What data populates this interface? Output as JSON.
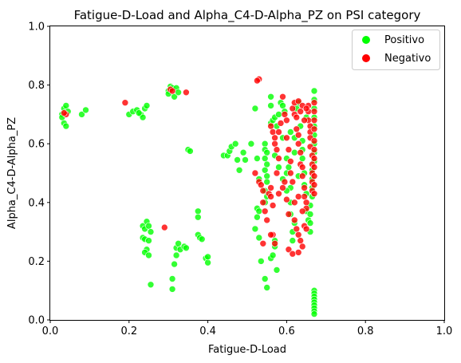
{
  "chart_data": {
    "type": "scatter",
    "title": "Fatigue-D-Load and Alpha_C4-D-Alpha_PZ on PSI category",
    "xlabel": "Fatigue-D-Load",
    "ylabel": "Alpha_C4-D-Alpha_PZ",
    "xlim": [
      0.0,
      1.0
    ],
    "ylim": [
      0.0,
      1.0
    ],
    "xticks": [
      "0.0",
      "0.2",
      "0.4",
      "0.6",
      "0.8",
      "1.0"
    ],
    "yticks": [
      "0.0",
      "0.2",
      "0.4",
      "0.6",
      "0.8",
      "1.0"
    ],
    "grid": false,
    "legend_position": "top-right",
    "series": [
      {
        "name": "Positivo",
        "color": "#00ff00",
        "points": [
          [
            0.03,
            0.7
          ],
          [
            0.035,
            0.72
          ],
          [
            0.04,
            0.73
          ],
          [
            0.035,
            0.67
          ],
          [
            0.04,
            0.66
          ],
          [
            0.045,
            0.71
          ],
          [
            0.03,
            0.69
          ],
          [
            0.08,
            0.7
          ],
          [
            0.09,
            0.715
          ],
          [
            0.2,
            0.7
          ],
          [
            0.21,
            0.71
          ],
          [
            0.22,
            0.715
          ],
          [
            0.23,
            0.7
          ],
          [
            0.235,
            0.69
          ],
          [
            0.24,
            0.72
          ],
          [
            0.245,
            0.73
          ],
          [
            0.225,
            0.705
          ],
          [
            0.3,
            0.78
          ],
          [
            0.305,
            0.795
          ],
          [
            0.31,
            0.79
          ],
          [
            0.315,
            0.76
          ],
          [
            0.32,
            0.79
          ],
          [
            0.325,
            0.775
          ],
          [
            0.3,
            0.77
          ],
          [
            0.35,
            0.58
          ],
          [
            0.355,
            0.575
          ],
          [
            0.235,
            0.32
          ],
          [
            0.24,
            0.31
          ],
          [
            0.245,
            0.335
          ],
          [
            0.25,
            0.32
          ],
          [
            0.235,
            0.28
          ],
          [
            0.24,
            0.275
          ],
          [
            0.25,
            0.27
          ],
          [
            0.245,
            0.24
          ],
          [
            0.24,
            0.23
          ],
          [
            0.25,
            0.22
          ],
          [
            0.255,
            0.3
          ],
          [
            0.255,
            0.12
          ],
          [
            0.31,
            0.14
          ],
          [
            0.315,
            0.19
          ],
          [
            0.32,
            0.22
          ],
          [
            0.32,
            0.245
          ],
          [
            0.325,
            0.26
          ],
          [
            0.33,
            0.24
          ],
          [
            0.34,
            0.25
          ],
          [
            0.345,
            0.245
          ],
          [
            0.31,
            0.105
          ],
          [
            0.375,
            0.37
          ],
          [
            0.375,
            0.35
          ],
          [
            0.375,
            0.29
          ],
          [
            0.38,
            0.28
          ],
          [
            0.385,
            0.275
          ],
          [
            0.395,
            0.21
          ],
          [
            0.4,
            0.195
          ],
          [
            0.4,
            0.215
          ],
          [
            0.44,
            0.56
          ],
          [
            0.45,
            0.56
          ],
          [
            0.455,
            0.575
          ],
          [
            0.46,
            0.59
          ],
          [
            0.47,
            0.6
          ],
          [
            0.48,
            0.51
          ],
          [
            0.475,
            0.545
          ],
          [
            0.49,
            0.57
          ],
          [
            0.495,
            0.545
          ],
          [
            0.51,
            0.6
          ],
          [
            0.52,
            0.72
          ],
          [
            0.525,
            0.55
          ],
          [
            0.53,
            0.48
          ],
          [
            0.525,
            0.38
          ],
          [
            0.53,
            0.37
          ],
          [
            0.525,
            0.35
          ],
          [
            0.52,
            0.31
          ],
          [
            0.53,
            0.28
          ],
          [
            0.535,
            0.2
          ],
          [
            0.545,
            0.6
          ],
          [
            0.545,
            0.58
          ],
          [
            0.55,
            0.57
          ],
          [
            0.545,
            0.55
          ],
          [
            0.55,
            0.53
          ],
          [
            0.545,
            0.51
          ],
          [
            0.55,
            0.49
          ],
          [
            0.55,
            0.47
          ],
          [
            0.545,
            0.44
          ],
          [
            0.55,
            0.42
          ],
          [
            0.545,
            0.4
          ],
          [
            0.545,
            0.14
          ],
          [
            0.55,
            0.11
          ],
          [
            0.56,
            0.21
          ],
          [
            0.565,
            0.22
          ],
          [
            0.57,
            0.25
          ],
          [
            0.57,
            0.27
          ],
          [
            0.575,
            0.17
          ],
          [
            0.56,
            0.76
          ],
          [
            0.56,
            0.73
          ],
          [
            0.56,
            0.67
          ],
          [
            0.565,
            0.68
          ],
          [
            0.57,
            0.69
          ],
          [
            0.575,
            0.66
          ],
          [
            0.58,
            0.7
          ],
          [
            0.585,
            0.74
          ],
          [
            0.59,
            0.73
          ],
          [
            0.595,
            0.71
          ],
          [
            0.6,
            0.55
          ],
          [
            0.6,
            0.5
          ],
          [
            0.605,
            0.52
          ],
          [
            0.61,
            0.45
          ],
          [
            0.61,
            0.4
          ],
          [
            0.61,
            0.36
          ],
          [
            0.615,
            0.3
          ],
          [
            0.615,
            0.27
          ],
          [
            0.62,
            0.57
          ],
          [
            0.62,
            0.62
          ],
          [
            0.625,
            0.72
          ],
          [
            0.63,
            0.74
          ],
          [
            0.635,
            0.66
          ],
          [
            0.64,
            0.58
          ],
          [
            0.64,
            0.55
          ],
          [
            0.645,
            0.5
          ],
          [
            0.645,
            0.46
          ],
          [
            0.65,
            0.43
          ],
          [
            0.65,
            0.37
          ],
          [
            0.655,
            0.34
          ],
          [
            0.66,
            0.3
          ],
          [
            0.66,
            0.33
          ],
          [
            0.66,
            0.36
          ],
          [
            0.66,
            0.39
          ],
          [
            0.665,
            0.42
          ],
          [
            0.665,
            0.45
          ],
          [
            0.665,
            0.48
          ],
          [
            0.665,
            0.51
          ],
          [
            0.67,
            0.54
          ],
          [
            0.67,
            0.57
          ],
          [
            0.67,
            0.6
          ],
          [
            0.67,
            0.63
          ],
          [
            0.67,
            0.66
          ],
          [
            0.67,
            0.69
          ],
          [
            0.67,
            0.72
          ],
          [
            0.67,
            0.75
          ],
          [
            0.67,
            0.78
          ],
          [
            0.67,
            0.1
          ],
          [
            0.67,
            0.09
          ],
          [
            0.67,
            0.08
          ],
          [
            0.67,
            0.07
          ],
          [
            0.67,
            0.06
          ],
          [
            0.67,
            0.05
          ],
          [
            0.67,
            0.04
          ],
          [
            0.67,
            0.03
          ],
          [
            0.67,
            0.02
          ],
          [
            0.58,
            0.52
          ],
          [
            0.59,
            0.48
          ],
          [
            0.6,
            0.44
          ],
          [
            0.63,
            0.49
          ],
          [
            0.62,
            0.33
          ],
          [
            0.64,
            0.61
          ],
          [
            0.65,
            0.69
          ],
          [
            0.61,
            0.64
          ],
          [
            0.59,
            0.62
          ],
          [
            0.57,
            0.56
          ]
        ]
      },
      {
        "name": "Negativo",
        "color": "#ff0000",
        "points": [
          [
            0.04,
            0.7
          ],
          [
            0.035,
            0.705
          ],
          [
            0.19,
            0.74
          ],
          [
            0.305,
            0.785
          ],
          [
            0.31,
            0.78
          ],
          [
            0.345,
            0.775
          ],
          [
            0.29,
            0.315
          ],
          [
            0.53,
            0.82
          ],
          [
            0.525,
            0.815
          ],
          [
            0.52,
            0.5
          ],
          [
            0.53,
            0.47
          ],
          [
            0.535,
            0.46
          ],
          [
            0.54,
            0.44
          ],
          [
            0.54,
            0.4
          ],
          [
            0.545,
            0.37
          ],
          [
            0.55,
            0.34
          ],
          [
            0.555,
            0.43
          ],
          [
            0.56,
            0.45
          ],
          [
            0.56,
            0.42
          ],
          [
            0.565,
            0.39
          ],
          [
            0.54,
            0.26
          ],
          [
            0.565,
            0.29
          ],
          [
            0.57,
            0.26
          ],
          [
            0.56,
            0.29
          ],
          [
            0.56,
            0.66
          ],
          [
            0.565,
            0.64
          ],
          [
            0.57,
            0.62
          ],
          [
            0.57,
            0.6
          ],
          [
            0.575,
            0.58
          ],
          [
            0.58,
            0.55
          ],
          [
            0.58,
            0.64
          ],
          [
            0.585,
            0.67
          ],
          [
            0.59,
            0.76
          ],
          [
            0.595,
            0.7
          ],
          [
            0.6,
            0.68
          ],
          [
            0.6,
            0.62
          ],
          [
            0.605,
            0.58
          ],
          [
            0.61,
            0.54
          ],
          [
            0.61,
            0.5
          ],
          [
            0.615,
            0.47
          ],
          [
            0.615,
            0.72
          ],
          [
            0.62,
            0.7
          ],
          [
            0.625,
            0.69
          ],
          [
            0.625,
            0.65
          ],
          [
            0.63,
            0.63
          ],
          [
            0.63,
            0.6
          ],
          [
            0.635,
            0.57
          ],
          [
            0.635,
            0.53
          ],
          [
            0.64,
            0.52
          ],
          [
            0.64,
            0.49
          ],
          [
            0.645,
            0.45
          ],
          [
            0.645,
            0.42
          ],
          [
            0.65,
            0.4
          ],
          [
            0.65,
            0.38
          ],
          [
            0.655,
            0.73
          ],
          [
            0.655,
            0.71
          ],
          [
            0.655,
            0.68
          ],
          [
            0.66,
            0.66
          ],
          [
            0.66,
            0.64
          ],
          [
            0.66,
            0.62
          ],
          [
            0.66,
            0.59
          ],
          [
            0.665,
            0.56
          ],
          [
            0.665,
            0.53
          ],
          [
            0.665,
            0.5
          ],
          [
            0.665,
            0.47
          ],
          [
            0.665,
            0.44
          ],
          [
            0.67,
            0.74
          ],
          [
            0.67,
            0.71
          ],
          [
            0.67,
            0.68
          ],
          [
            0.67,
            0.65
          ],
          [
            0.67,
            0.61
          ],
          [
            0.67,
            0.58
          ],
          [
            0.67,
            0.55
          ],
          [
            0.67,
            0.52
          ],
          [
            0.67,
            0.49
          ],
          [
            0.67,
            0.46
          ],
          [
            0.67,
            0.43
          ],
          [
            0.62,
            0.34
          ],
          [
            0.625,
            0.31
          ],
          [
            0.63,
            0.29
          ],
          [
            0.635,
            0.27
          ],
          [
            0.64,
            0.25
          ],
          [
            0.605,
            0.24
          ],
          [
            0.615,
            0.225
          ],
          [
            0.63,
            0.23
          ],
          [
            0.645,
            0.32
          ],
          [
            0.65,
            0.31
          ],
          [
            0.62,
            0.4
          ],
          [
            0.63,
            0.42
          ],
          [
            0.64,
            0.37
          ],
          [
            0.59,
            0.45
          ],
          [
            0.6,
            0.41
          ],
          [
            0.605,
            0.36
          ],
          [
            0.595,
            0.47
          ],
          [
            0.58,
            0.43
          ],
          [
            0.575,
            0.5
          ],
          [
            0.62,
            0.74
          ],
          [
            0.63,
            0.745
          ],
          [
            0.64,
            0.73
          ],
          [
            0.65,
            0.72
          ],
          [
            0.645,
            0.68
          ],
          [
            0.635,
            0.71
          ]
        ]
      }
    ]
  }
}
